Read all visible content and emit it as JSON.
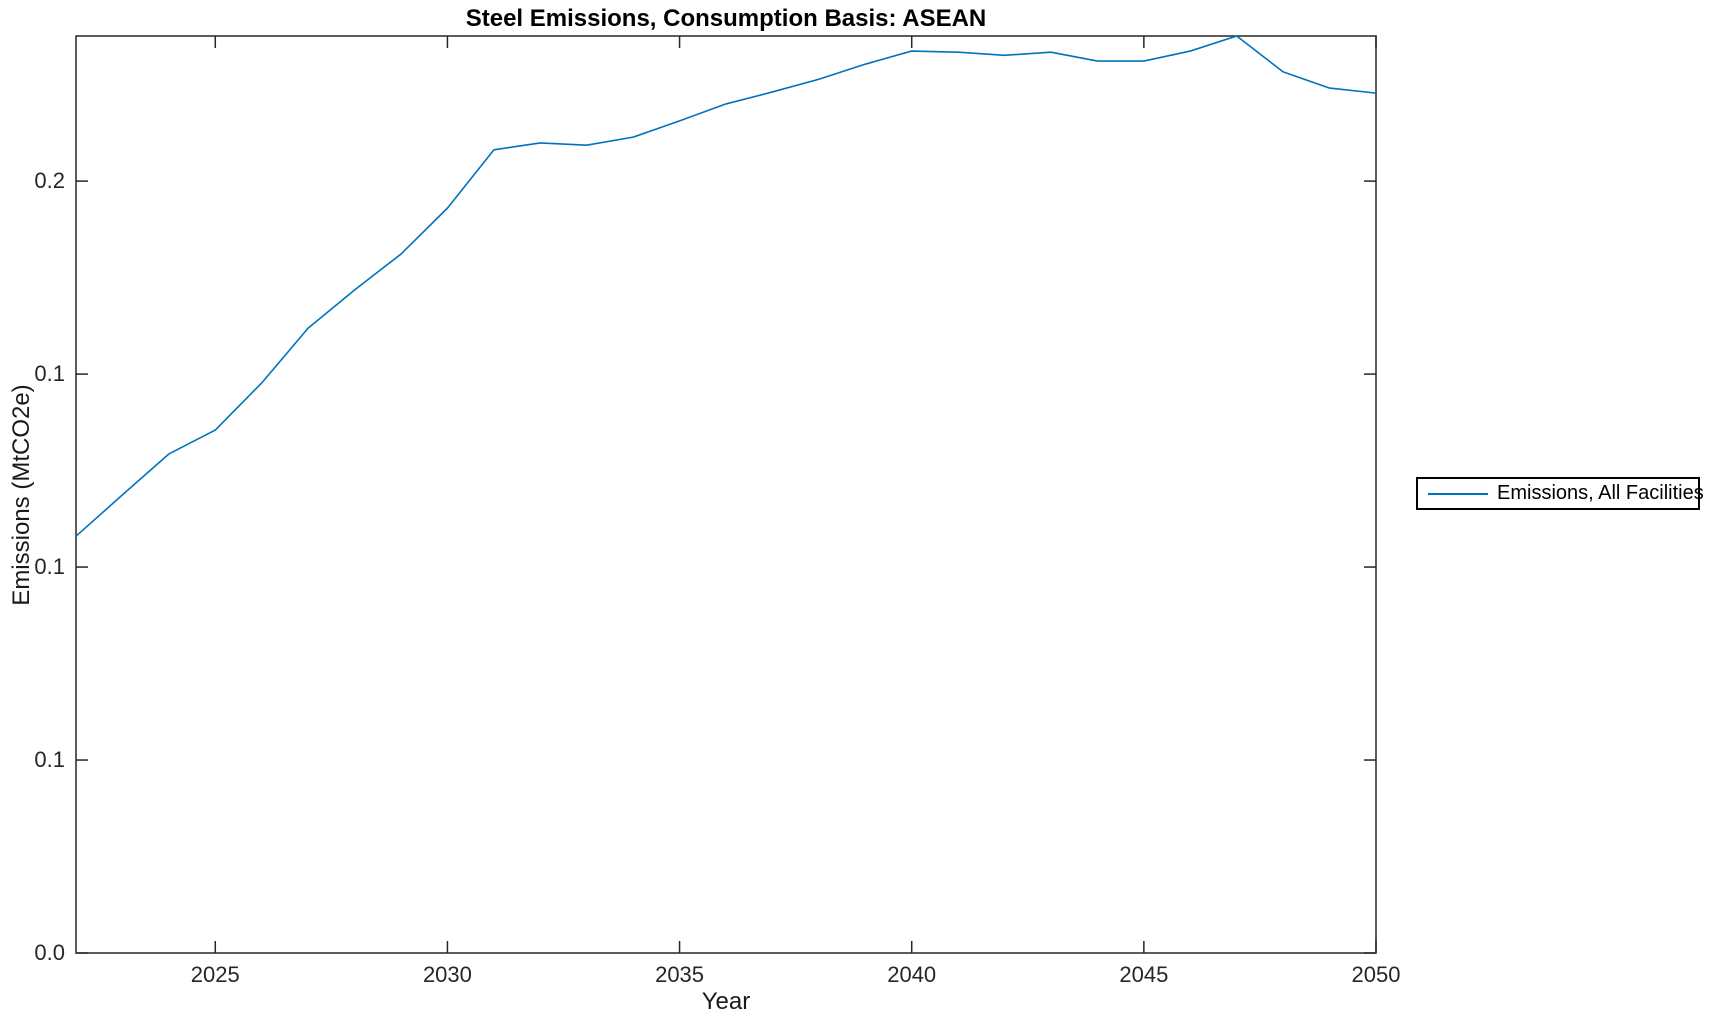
{
  "figure": {
    "title": "Steel Emissions, Consumption Basis: ASEAN",
    "xlabel": "Year",
    "ylabel": "Emissions (MtCO2e)",
    "legend": {
      "items": [
        {
          "label": "Emissions, All Facilities",
          "color": "#0072BD"
        }
      ]
    }
  },
  "chart_data": {
    "type": "line",
    "title": "Steel Emissions, Consumption Basis: ASEAN",
    "xlabel": "Year",
    "ylabel": "Emissions (MtCO2e)",
    "grid": false,
    "legend_position": "outside-right",
    "box": true,
    "tick_direction": "in",
    "xlim": [
      2022,
      2050
    ],
    "ylim": [
      0,
      0.2376
    ],
    "xticks": [
      2025,
      2030,
      2035,
      2040,
      2045,
      2050
    ],
    "xtick_labels": [
      "2025",
      "2030",
      "2035",
      "2040",
      "2045",
      "2050"
    ],
    "yticks": [
      0,
      0.05,
      0.1,
      0.15,
      0.2
    ],
    "ytick_labels": [
      "0.0",
      "0.1",
      "0.1",
      "0.1",
      "0.2"
    ],
    "series": [
      {
        "name": "Emissions, All Facilities",
        "color": "#0072BD",
        "x": [
          2022,
          2023,
          2024,
          2025,
          2026,
          2027,
          2028,
          2029,
          2030,
          2031,
          2032,
          2033,
          2034,
          2035,
          2036,
          2037,
          2038,
          2039,
          2040,
          2041,
          2042,
          2043,
          2044,
          2045,
          2046,
          2047,
          2048,
          2049,
          2050
        ],
        "y": [
          0.108,
          0.1187,
          0.1293,
          0.1355,
          0.1477,
          0.1619,
          0.1718,
          0.1811,
          0.193,
          0.2081,
          0.2099,
          0.2093,
          0.2114,
          0.2156,
          0.22,
          0.2231,
          0.2264,
          0.2303,
          0.2337,
          0.2334,
          0.2326,
          0.2334,
          0.2311,
          0.2311,
          0.2337,
          0.2376,
          0.2283,
          0.2241,
          0.2228
        ]
      }
    ]
  }
}
